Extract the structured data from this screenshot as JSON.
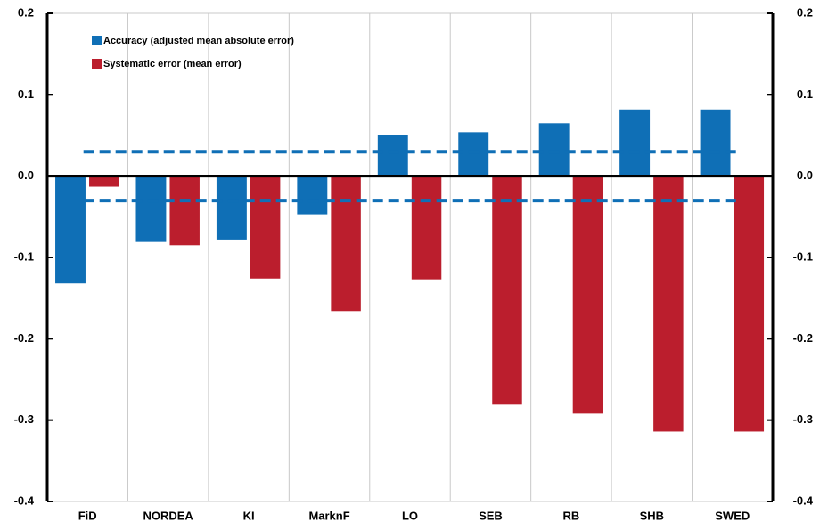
{
  "chart_data": {
    "type": "bar",
    "categories": [
      "FiD",
      "NORDEA",
      "KI",
      "MarknF",
      "LO",
      "SEB",
      "RB",
      "SHB",
      "SWED"
    ],
    "series": [
      {
        "name": "Accuracy (adjusted mean absolute error)",
        "color": "#0f6fb6",
        "values": [
          -0.132,
          -0.081,
          -0.078,
          -0.047,
          0.051,
          0.054,
          0.065,
          0.082,
          0.082
        ]
      },
      {
        "name": "Systematic error (mean error)",
        "color": "#bb1e2d",
        "values": [
          -0.013,
          -0.085,
          -0.126,
          -0.166,
          -0.127,
          -0.281,
          -0.292,
          -0.314,
          -0.314
        ]
      }
    ],
    "reference_lines": [
      0.03,
      -0.03
    ],
    "reference_color": "#0f6fb6",
    "ylim": [
      -0.4,
      0.2
    ],
    "yticks": [
      -0.4,
      -0.3,
      -0.2,
      -0.1,
      {
        "value": 0,
        "label": "0.0"
      },
      0.1,
      0.2
    ],
    "y2lim": [
      -0.4,
      0.2
    ],
    "y2ticks": [
      -0.4,
      -0.3,
      -0.2,
      -0.1,
      {
        "value": 0,
        "label": "0.0"
      },
      0.1,
      0.2
    ],
    "grid": true,
    "legend": "top-left"
  }
}
